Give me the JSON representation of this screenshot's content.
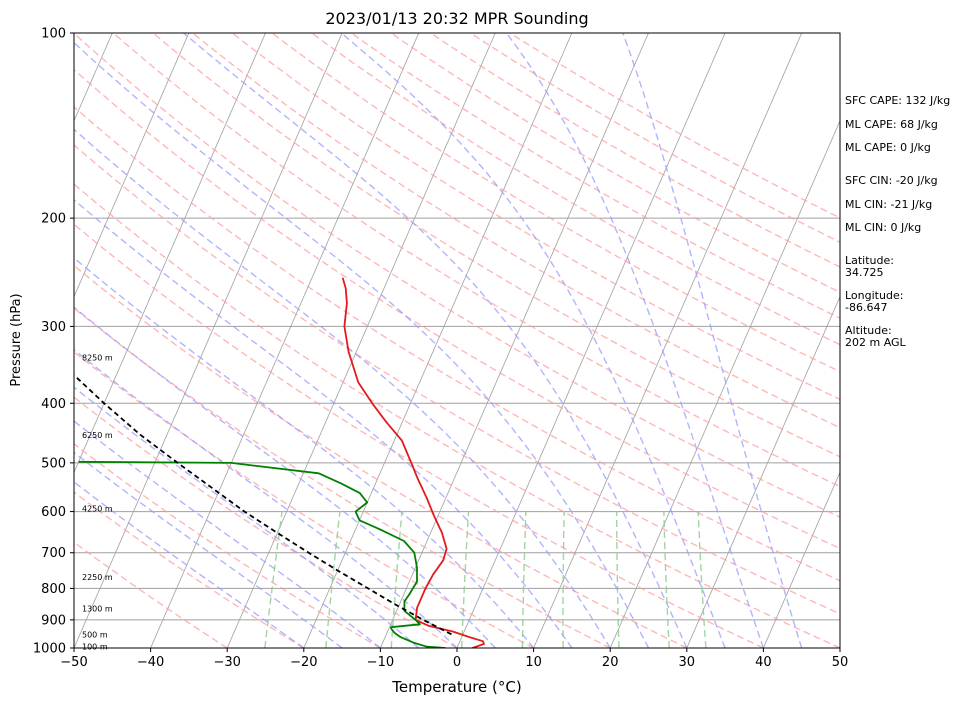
{
  "chart_data": {
    "type": "line",
    "title": "2023/01/13 20:32 MPR Sounding",
    "xlabel": "Temperature (°C)",
    "ylabel": "Pressure (hPa)",
    "xlim": [
      -50,
      50
    ],
    "ylim": [
      1000,
      100
    ],
    "yscale": "log",
    "skew": true,
    "grid": true,
    "x_ticks": [
      "−50",
      "−40",
      "−30",
      "−20",
      "−10",
      "0",
      "10",
      "20",
      "30",
      "40",
      "50"
    ],
    "y_ticks": [
      "100",
      "200",
      "300",
      "400",
      "500",
      "600",
      "700",
      "800",
      "900",
      "1000"
    ],
    "series": [
      {
        "color": "#e41a1c",
        "points": [
          [
            1000,
            2.0
          ],
          [
            985,
            3.3
          ],
          [
            975,
            3.0
          ],
          [
            960,
            1.0
          ],
          [
            940,
            -1.5
          ],
          [
            920,
            -5.0
          ],
          [
            900,
            -7.0
          ],
          [
            860,
            -7.5
          ],
          [
            800,
            -7.5
          ],
          [
            760,
            -7.3
          ],
          [
            720,
            -6.8
          ],
          [
            690,
            -7.0
          ],
          [
            650,
            -8.5
          ],
          [
            610,
            -10.5
          ],
          [
            570,
            -12.5
          ],
          [
            530,
            -14.8
          ],
          [
            500,
            -16.5
          ],
          [
            460,
            -19.0
          ],
          [
            430,
            -22.0
          ],
          [
            400,
            -25.0
          ],
          [
            370,
            -28.0
          ],
          [
            330,
            -31.0
          ],
          [
            300,
            -33.0
          ],
          [
            275,
            -34.0
          ],
          [
            260,
            -35.0
          ],
          [
            250,
            -36.0
          ]
        ]
      },
      {
        "color": "#008000",
        "points": [
          [
            1000,
            -1.5
          ],
          [
            995,
            -4.0
          ],
          [
            980,
            -6.0
          ],
          [
            960,
            -8.0
          ],
          [
            945,
            -9.0
          ],
          [
            930,
            -9.7
          ],
          [
            925,
            -9.8
          ],
          [
            915,
            -6.2
          ],
          [
            900,
            -7.0
          ],
          [
            870,
            -9.0
          ],
          [
            840,
            -9.5
          ],
          [
            820,
            -9.3
          ],
          [
            780,
            -9.0
          ],
          [
            740,
            -9.8
          ],
          [
            700,
            -11.0
          ],
          [
            670,
            -13.0
          ],
          [
            640,
            -17.0
          ],
          [
            620,
            -20.0
          ],
          [
            600,
            -21.0
          ],
          [
            580,
            -20.0
          ],
          [
            560,
            -21.5
          ],
          [
            540,
            -24.5
          ],
          [
            520,
            -28.0
          ],
          [
            500,
            -40.0
          ],
          [
            498,
            -60.0
          ]
        ]
      },
      {
        "color": "#000000",
        "dashed": true,
        "points": [
          [
            950,
            -1.5
          ],
          [
            900,
            -6.0
          ],
          [
            850,
            -10.5
          ],
          [
            800,
            -15.0
          ],
          [
            750,
            -19.8
          ],
          [
            700,
            -24.8
          ],
          [
            650,
            -30.0
          ],
          [
            600,
            -35.5
          ],
          [
            550,
            -41.0
          ],
          [
            500,
            -47.0
          ],
          [
            450,
            -53.5
          ],
          [
            400,
            -60.0
          ],
          [
            350,
            -67.0
          ],
          [
            300,
            -75.0
          ],
          [
            275,
            -79.0
          ]
        ]
      }
    ],
    "height_labels": [
      {
        "text": "100 m",
        "p": 998
      },
      {
        "text": "500 m",
        "p": 955
      },
      {
        "text": "1300 m",
        "p": 865
      },
      {
        "text": "2250 m",
        "p": 770
      },
      {
        "text": "4250 m",
        "p": 595
      },
      {
        "text": "6250 m",
        "p": 452
      },
      {
        "text": "8250 m",
        "p": 338
      }
    ],
    "indices": [
      "SFC CAPE: 132 J/kg",
      "ML CAPE: 68 J/kg",
      "ML CAPE: 0 J/kg",
      "SFC CIN: -20 J/kg",
      "ML CIN: -21 J/kg",
      "ML CIN: 0 J/kg"
    ],
    "location": [
      "Latitude:",
      "34.725",
      "Longitude:",
      "-86.647",
      "Altitude:",
      "202 m AGL"
    ],
    "colors": {
      "isotherm": "#a0a0a0",
      "dry_adiabat": "#ff9999",
      "moist_adiabat": "#9999ff",
      "mixing_ratio": "#88cc88"
    }
  }
}
